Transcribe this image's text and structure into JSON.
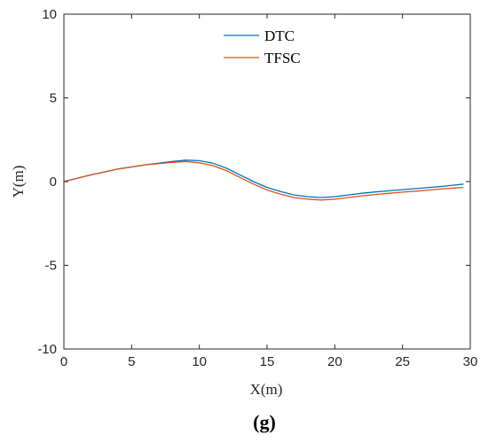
{
  "chart_data": {
    "type": "line",
    "title": "",
    "xlabel": "X(m)",
    "ylabel": "Y(m)",
    "xlim": [
      0,
      30
    ],
    "ylim": [
      -10,
      10
    ],
    "xticks": [
      0,
      5,
      10,
      15,
      20,
      25,
      30
    ],
    "yticks": [
      -10,
      -5,
      0,
      5,
      10
    ],
    "grid": false,
    "legend_position": "top-center",
    "panel_label": "(g)",
    "series": [
      {
        "name": "DTC",
        "color": "#0072BD",
        "x": [
          0,
          2,
          4,
          6,
          8,
          9,
          10,
          11,
          12,
          13,
          14,
          15,
          16,
          17,
          18,
          19,
          20,
          21,
          22,
          23,
          24,
          25,
          26,
          27,
          28,
          29.5
        ],
        "y": [
          0,
          0.4,
          0.75,
          1.0,
          1.2,
          1.28,
          1.25,
          1.1,
          0.8,
          0.4,
          0.0,
          -0.35,
          -0.6,
          -0.8,
          -0.9,
          -0.95,
          -0.9,
          -0.8,
          -0.7,
          -0.62,
          -0.55,
          -0.48,
          -0.42,
          -0.35,
          -0.28,
          -0.15
        ]
      },
      {
        "name": "TFSC",
        "color": "#D95319",
        "x": [
          0,
          2,
          4,
          6,
          8,
          9,
          10,
          11,
          12,
          13,
          14,
          15,
          16,
          17,
          18,
          19,
          20,
          21,
          22,
          23,
          24,
          25,
          26,
          27,
          28,
          29.5
        ],
        "y": [
          0,
          0.4,
          0.75,
          1.0,
          1.15,
          1.2,
          1.12,
          0.95,
          0.65,
          0.25,
          -0.15,
          -0.5,
          -0.75,
          -0.95,
          -1.05,
          -1.1,
          -1.05,
          -0.95,
          -0.85,
          -0.77,
          -0.7,
          -0.63,
          -0.57,
          -0.5,
          -0.43,
          -0.35
        ]
      }
    ]
  }
}
